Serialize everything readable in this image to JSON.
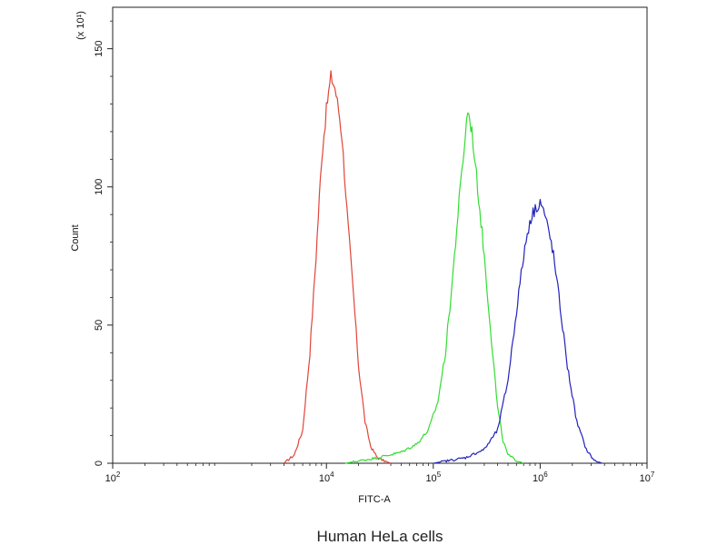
{
  "chart_data": {
    "type": "line",
    "caption": "Human HeLa cells",
    "xlabel": "FITC-A",
    "ylabel": "Count",
    "y_multiplier_label": "(x 10¹)",
    "x_scale": "log",
    "xlim": [
      100,
      10000000
    ],
    "ylim": [
      0,
      165
    ],
    "x_ticks": [
      {
        "value": 100,
        "base": "10",
        "exp": "2"
      },
      {
        "value": 10000,
        "base": "10",
        "exp": "4"
      },
      {
        "value": 100000,
        "base": "10",
        "exp": "5"
      },
      {
        "value": 1000000,
        "base": "10",
        "exp": "6"
      },
      {
        "value": 10000000,
        "base": "10",
        "exp": "7"
      }
    ],
    "y_ticks": [
      {
        "value": 0,
        "label": "0"
      },
      {
        "value": 50,
        "label": "50"
      },
      {
        "value": 100,
        "label": "100"
      },
      {
        "value": 150,
        "label": "150"
      }
    ],
    "grid": false,
    "legend": "none",
    "series": [
      {
        "color": "#e0453a",
        "x": [
          4000,
          5000,
          6000,
          7000,
          8000,
          9000,
          10000,
          11000,
          12000,
          13000,
          14000,
          16000,
          18000,
          20000,
          23000,
          26000,
          30000,
          34000,
          40000
        ],
        "y": [
          0,
          3,
          12,
          40,
          75,
          110,
          128,
          140,
          136,
          128,
          118,
          85,
          60,
          35,
          15,
          6,
          2,
          1,
          0
        ]
      },
      {
        "color": "#33dd33",
        "x": [
          15000,
          30000,
          50000,
          70000,
          90000,
          110000,
          130000,
          150000,
          170000,
          190000,
          210000,
          230000,
          260000,
          300000,
          350000,
          400000,
          450000,
          500000,
          600000,
          700000
        ],
        "y": [
          0,
          2,
          4,
          7,
          12,
          22,
          40,
          65,
          90,
          110,
          128,
          120,
          100,
          75,
          45,
          20,
          8,
          3,
          1,
          0
        ]
      },
      {
        "color": "#2222bb",
        "x": [
          100000,
          200000,
          300000,
          400000,
          500000,
          600000,
          700000,
          800000,
          900000,
          1000000,
          1100000,
          1300000,
          1500000,
          1800000,
          2200000,
          2700000,
          3200000,
          3800000
        ],
        "y": [
          0,
          2,
          5,
          12,
          30,
          55,
          75,
          88,
          92,
          95,
          90,
          78,
          60,
          35,
          15,
          5,
          1,
          0
        ]
      }
    ]
  }
}
